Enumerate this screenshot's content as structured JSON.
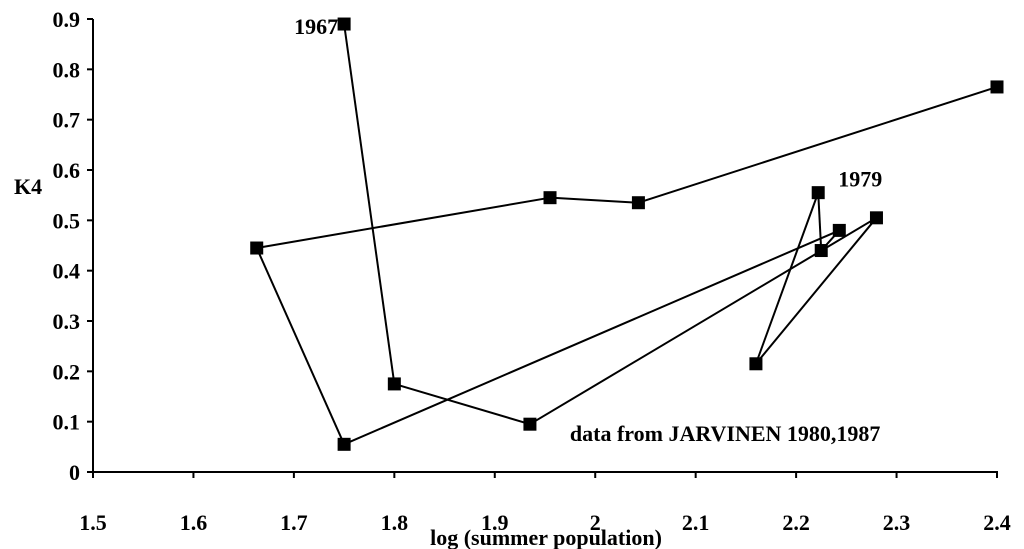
{
  "chart_data": {
    "type": "line",
    "title": "",
    "xlabel": "log (summer population)",
    "ylabel": "K4",
    "xlim": [
      1.5,
      2.4
    ],
    "ylim": [
      0,
      0.9
    ],
    "x_ticks": [
      "1.5",
      "1.6",
      "1.7",
      "1.8",
      "1.9",
      "2",
      "2.1",
      "2.2",
      "2.3",
      "2.4"
    ],
    "y_ticks": [
      "0",
      "0.1",
      "0.2",
      "0.3",
      "0.4",
      "0.5",
      "0.6",
      "0.7",
      "0.8",
      "0.9"
    ],
    "grid": false,
    "legend": "none",
    "marker": "square",
    "color": "#000000",
    "series": [
      {
        "x": [
          1.75,
          1.8,
          1.935,
          2.28,
          2.16,
          2.222,
          2.225,
          2.243,
          1.75,
          1.663,
          1.955,
          2.043,
          2.4
        ],
        "y": [
          0.89,
          0.175,
          0.095,
          0.505,
          0.215,
          0.555,
          0.44,
          0.48,
          0.055,
          0.445,
          0.545,
          0.535,
          0.765
        ]
      }
    ],
    "annotations": [
      {
        "text": "1967",
        "x": 1.75,
        "y": 0.89
      },
      {
        "text": "1979",
        "x": 2.222,
        "y": 0.555
      },
      {
        "text": "data from JARVINEN 1980,1987",
        "x": 1.935,
        "y": 0.095
      }
    ]
  }
}
